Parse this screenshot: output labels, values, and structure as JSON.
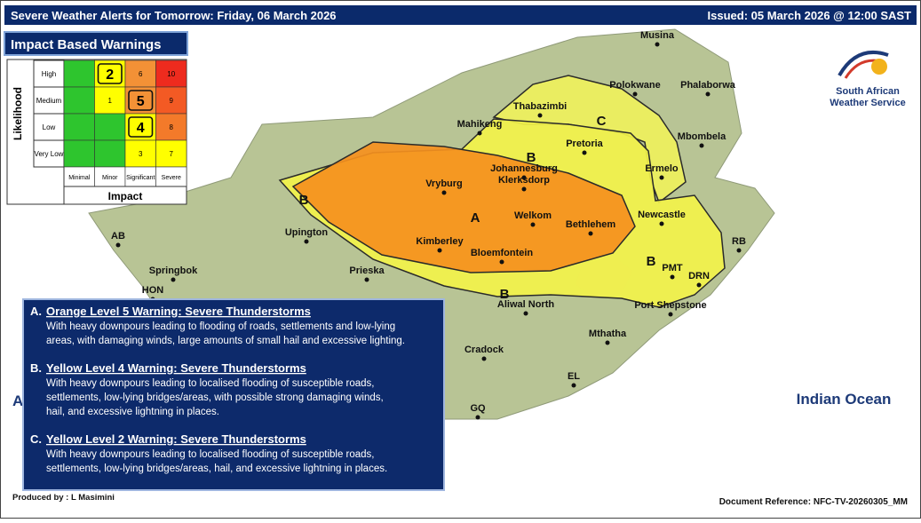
{
  "header": {
    "title": "Severe Weather Alerts for Tomorrow: Friday, 06 March 2026",
    "issued": "Issued: 05 March 2026 @ 12:00 SAST"
  },
  "matrix": {
    "title": "Impact Based Warnings",
    "y_axis": "Likelihood",
    "x_axis": "Impact",
    "rows": [
      "High",
      "Medium",
      "Low",
      "Very Low"
    ],
    "columns": [
      "Minimal",
      "Minor",
      "Significant",
      "Severe"
    ],
    "cells": [
      [
        {
          "color": "#2ec52e"
        },
        {
          "label": 2,
          "color": "#ffff00",
          "highlight": true
        },
        {
          "label": 6,
          "color": "#f39136"
        },
        {
          "label": 10,
          "color": "#ee2b1e"
        }
      ],
      [
        {
          "color": "#2ec52e"
        },
        {
          "label": 1,
          "color": "#ffff00"
        },
        {
          "label": 5,
          "color": "#f39136",
          "highlight": true
        },
        {
          "label": 9,
          "color": "#f35a24"
        }
      ],
      [
        {
          "color": "#2ec52e"
        },
        {
          "color": "#2ec52e"
        },
        {
          "label": 4,
          "color": "#ffff00",
          "highlight": true
        },
        {
          "label": 8,
          "color": "#f37a2a"
        }
      ],
      [
        {
          "color": "#2ec52e"
        },
        {
          "color": "#2ec52e"
        },
        {
          "label": 3,
          "color": "#ffff00"
        },
        {
          "label": 7,
          "color": "#ffff00"
        }
      ]
    ]
  },
  "logo": {
    "line1": "South African",
    "line2": "Weather Service"
  },
  "map": {
    "zones": [
      {
        "label": "A",
        "color": "#f5901e"
      },
      {
        "label": "B",
        "color": "#f2f24a"
      },
      {
        "label": "C",
        "color": "#eef05c"
      }
    ],
    "places": [
      "Musina",
      "Polokwane",
      "Phalaborwa",
      "Thabazimbi",
      "Mbombela",
      "Pretoria",
      "Mahikeng",
      "Johannesburg",
      "Ermelo",
      "Vryburg",
      "Klerksdorp",
      "Welkom",
      "Bethlehem",
      "Newcastle",
      "Kimberley",
      "Bloemfontein",
      "Upington",
      "AB",
      "Springbok",
      "Prieska",
      "HON",
      "RB",
      "DRN",
      "PMT",
      "Port Shepstone",
      "Aliwal North",
      "Mthatha",
      "Cradock",
      "EL",
      "GQ"
    ],
    "ocean": "Indian Ocean",
    "atlantic": "A"
  },
  "warnings": [
    {
      "letter": "A.",
      "title": "Orange Level 5 Warning: Severe Thunderstorms",
      "text": [
        "With heavy downpours leading to flooding of roads, settlements and low-lying",
        "areas, with damaging winds, large amounts of small hail and excessive  lighting."
      ]
    },
    {
      "letter": "B.",
      "title": "Yellow Level  4 Warning: Severe Thunderstorms",
      "text": [
        "With heavy downpours leading to localised flooding of  susceptible roads,",
        "settlements, low-lying bridges/areas,  with possible strong damaging winds,",
        "hail, and excessive lightning in places."
      ]
    },
    {
      "letter": "C.",
      "title": "Yellow Level  2 Warning: Severe Thunderstorms",
      "text": [
        "With heavy downpours leading to localised flooding of  susceptible roads,",
        "settlements, low-lying bridges/areas, hail, and excessive lightning in places."
      ]
    }
  ],
  "footer": {
    "producer": "Produced by : L Masimini",
    "reference": "Document Reference: NFC-TV-20260305_MM"
  }
}
